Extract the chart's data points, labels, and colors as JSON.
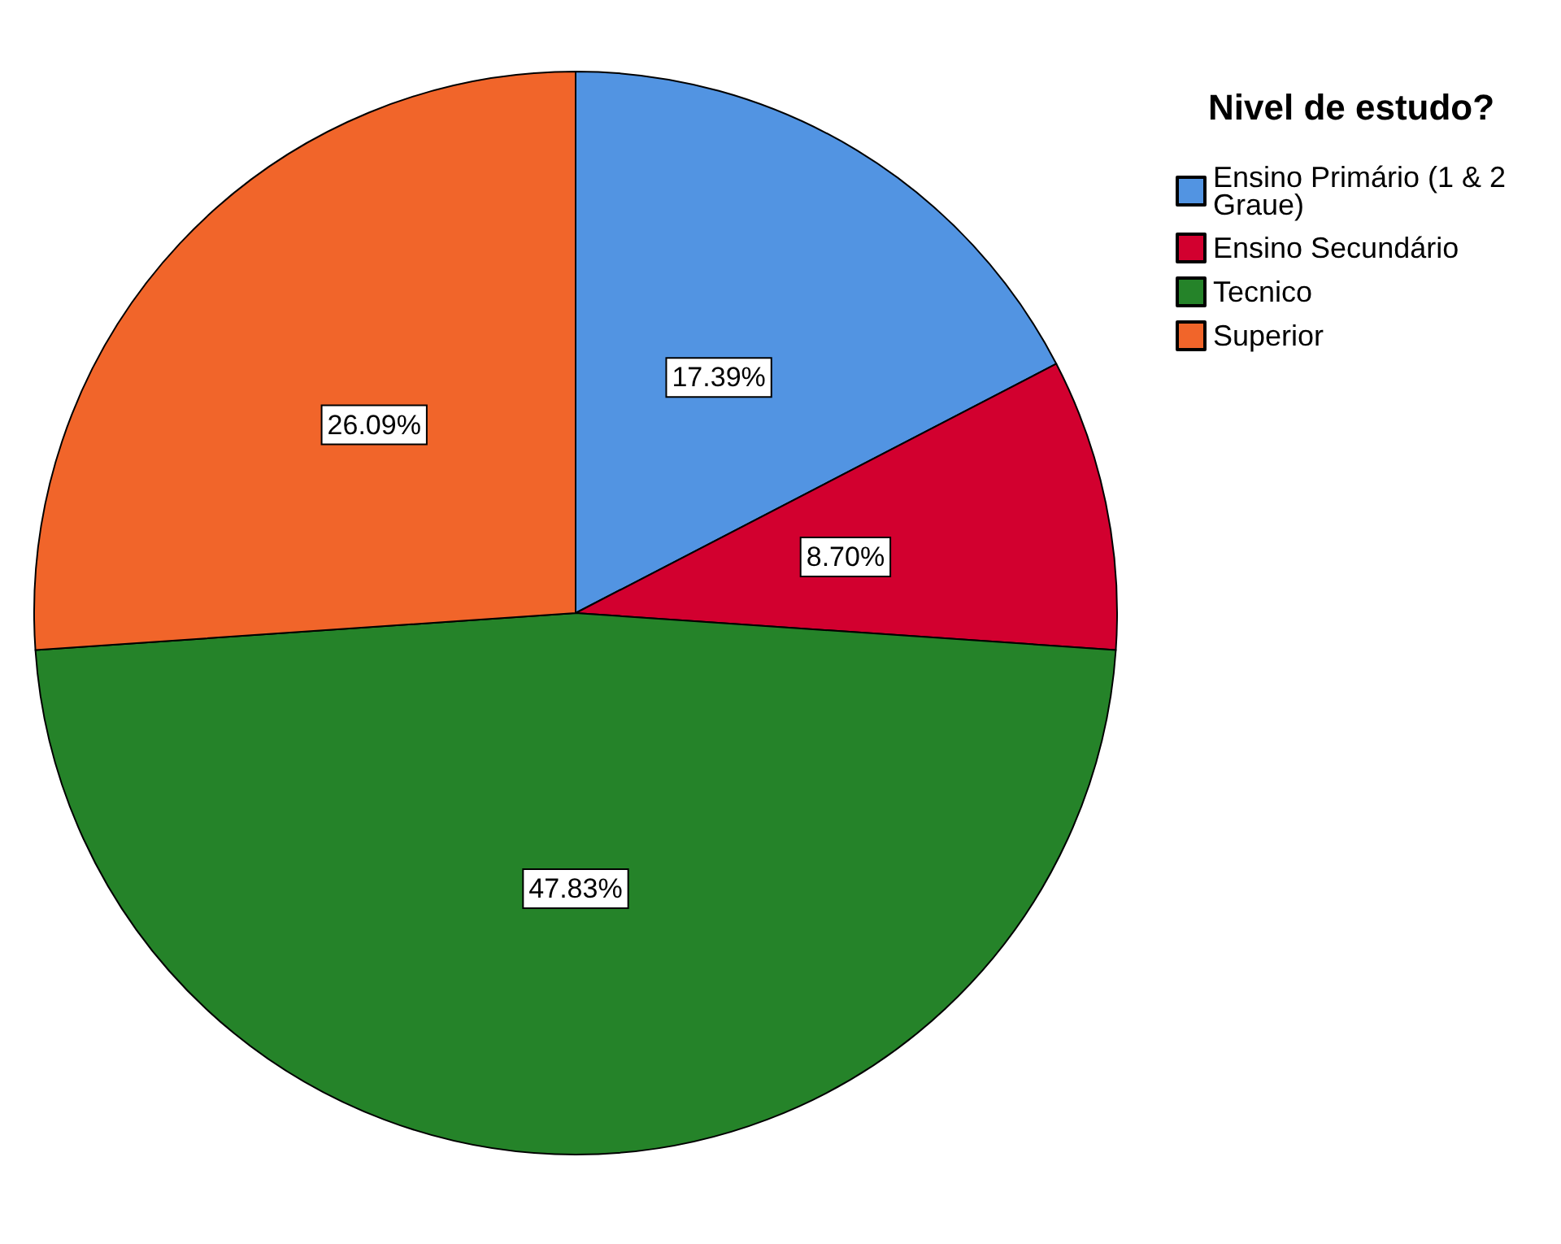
{
  "chart_data": {
    "type": "pie",
    "legend_title": "Nivel de estudo?",
    "categories": [
      "Ensino Primário (1 & 2 Graue)",
      "Ensino Secundário",
      "Tecnico",
      "Superior"
    ],
    "values": [
      17.39,
      8.7,
      47.83,
      26.09
    ],
    "value_labels": [
      "17.39%",
      "8.70%",
      "47.83%",
      "26.09%"
    ],
    "colors": [
      "#5294e2",
      "#d2002f",
      "#258329",
      "#f1652a"
    ],
    "legend": "top right"
  }
}
